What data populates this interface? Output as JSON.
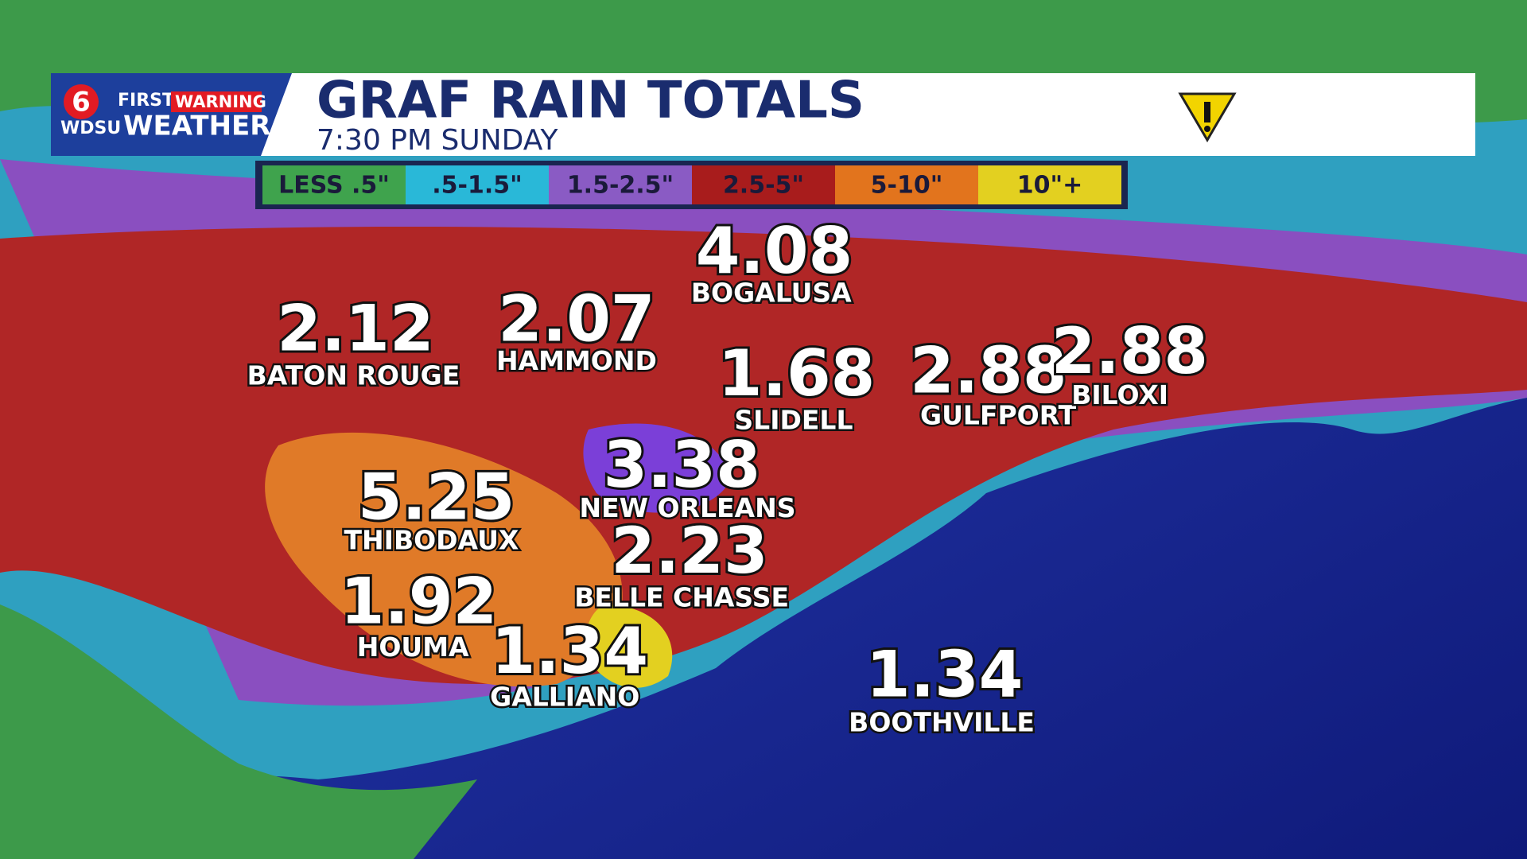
{
  "logo": {
    "channel": "6",
    "first": "FIRST",
    "warning": "WARNING",
    "station": "WDSU",
    "weather": "WEATHER"
  },
  "header": {
    "title": "GRAF RAIN TOTALS",
    "subtitle": "7:30 PM  SUNDAY"
  },
  "legend": [
    {
      "label": "LESS .5\"",
      "color": "#3fa34d"
    },
    {
      "label": ".5-1.5\"",
      "color": "#29b8d8"
    },
    {
      "label": "1.5-2.5\"",
      "color": "#8a5bc4"
    },
    {
      "label": "2.5-5\"",
      "color": "#a81c1c"
    },
    {
      "label": "5-10\"",
      "color": "#e2741d"
    },
    {
      "label": "10\"+",
      "color": "#e3d020"
    }
  ],
  "locations": [
    {
      "value": "4.08",
      "name": "BOGALUSA"
    },
    {
      "value": "2.12",
      "name": "BATON ROUGE"
    },
    {
      "value": "2.07",
      "name": "HAMMOND"
    },
    {
      "value": "1.68",
      "name": "SLIDELL"
    },
    {
      "value": "2.88",
      "name": "GULFPORT"
    },
    {
      "value": "2.88",
      "name": "BILOXI"
    },
    {
      "value": "3.38",
      "name": "NEW ORLEANS"
    },
    {
      "value": "5.25",
      "name": "THIBODAUX"
    },
    {
      "value": "2.23",
      "name": "BELLE CHASSE"
    },
    {
      "value": "1.92",
      "name": "HOUMA"
    },
    {
      "value": "1.34",
      "name": "GALLIANO"
    },
    {
      "value": "1.34",
      "name": "BOOTHVILLE"
    }
  ]
}
